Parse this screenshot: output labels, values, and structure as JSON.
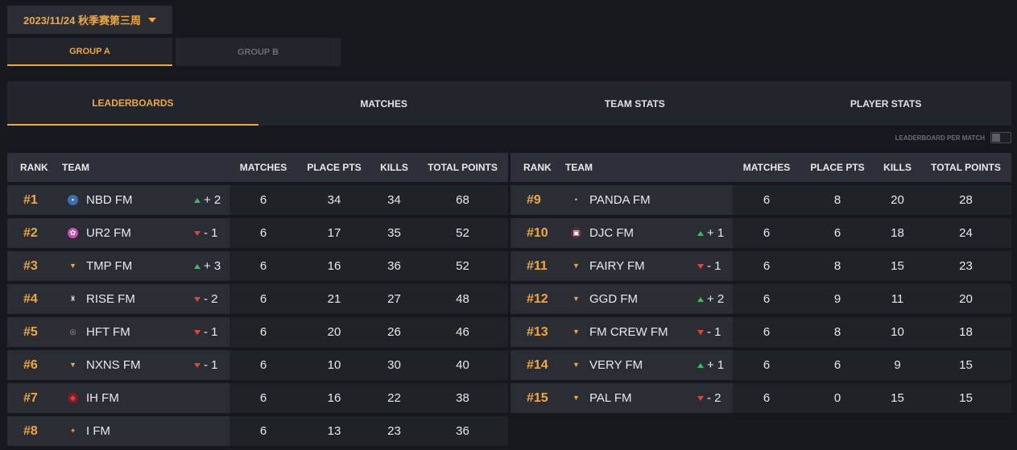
{
  "event_selector": {
    "label": "2023/11/24 秋季赛第三周",
    "icon": "chevron-down-icon"
  },
  "groups": [
    {
      "label": "GROUP A",
      "active": true
    },
    {
      "label": "GROUP B",
      "active": false
    }
  ],
  "tabs": [
    {
      "label": "LEADERBOARDS",
      "active": true
    },
    {
      "label": "MATCHES",
      "active": false
    },
    {
      "label": "TEAM STATS",
      "active": false
    },
    {
      "label": "PLAYER STATS",
      "active": false
    }
  ],
  "toggle": {
    "label": "LEADERBOARD PER MATCH",
    "on": false
  },
  "columns": {
    "rank": "RANK",
    "team": "TEAM",
    "matches": "MATCHES",
    "place_pts": "PLACE PTS",
    "kills": "KILLS",
    "total": "TOTAL POINTS"
  },
  "colors": {
    "accent": "#f0a83a",
    "up": "#3dbb5a",
    "down": "#e0453b"
  },
  "left_rows": [
    {
      "rank": "#1",
      "team": "NBD FM",
      "change": "+ 2",
      "dir": "up",
      "matches": "6",
      "place": "34",
      "kills": "34",
      "total": "68",
      "logo": "nbd-logo-icon"
    },
    {
      "rank": "#2",
      "team": "UR2 FM",
      "change": "- 1",
      "dir": "down",
      "matches": "6",
      "place": "17",
      "kills": "35",
      "total": "52",
      "logo": "ur2-logo-icon"
    },
    {
      "rank": "#3",
      "team": "TMP FM",
      "change": "+ 3",
      "dir": "up",
      "matches": "6",
      "place": "16",
      "kills": "36",
      "total": "52",
      "logo": "fm-chevron-logo-icon"
    },
    {
      "rank": "#4",
      "team": "RISE FM",
      "change": "- 2",
      "dir": "down",
      "matches": "6",
      "place": "21",
      "kills": "27",
      "total": "48",
      "logo": "rise-logo-icon"
    },
    {
      "rank": "#5",
      "team": "HFT FM",
      "change": "- 1",
      "dir": "down",
      "matches": "6",
      "place": "20",
      "kills": "26",
      "total": "46",
      "logo": "hft-logo-icon"
    },
    {
      "rank": "#6",
      "team": "NXNS FM",
      "change": "- 1",
      "dir": "down",
      "matches": "6",
      "place": "10",
      "kills": "30",
      "total": "40",
      "logo": "fm-chevron-logo-icon"
    },
    {
      "rank": "#7",
      "team": "IH FM",
      "change": "",
      "dir": "",
      "matches": "6",
      "place": "16",
      "kills": "22",
      "total": "38",
      "logo": "ih-logo-icon"
    },
    {
      "rank": "#8",
      "team": "I FM",
      "change": "",
      "dir": "",
      "matches": "6",
      "place": "13",
      "kills": "23",
      "total": "36",
      "logo": "i-logo-icon"
    }
  ],
  "right_rows": [
    {
      "rank": "#9",
      "team": "PANDA FM",
      "change": "",
      "dir": "",
      "matches": "6",
      "place": "8",
      "kills": "20",
      "total": "28",
      "logo": "panda-logo-icon"
    },
    {
      "rank": "#10",
      "team": "DJC FM",
      "change": "+ 1",
      "dir": "up",
      "matches": "6",
      "place": "6",
      "kills": "18",
      "total": "24",
      "logo": "djc-logo-icon"
    },
    {
      "rank": "#11",
      "team": "FAIRY FM",
      "change": "- 1",
      "dir": "down",
      "matches": "6",
      "place": "8",
      "kills": "15",
      "total": "23",
      "logo": "fm-chevron-logo-icon"
    },
    {
      "rank": "#12",
      "team": "GGD FM",
      "change": "+ 2",
      "dir": "up",
      "matches": "6",
      "place": "9",
      "kills": "11",
      "total": "20",
      "logo": "fm-chevron-logo-icon"
    },
    {
      "rank": "#13",
      "team": "FM CREW FM",
      "change": "- 1",
      "dir": "down",
      "matches": "6",
      "place": "8",
      "kills": "10",
      "total": "18",
      "logo": "fm-chevron-logo-icon"
    },
    {
      "rank": "#14",
      "team": "VERY FM",
      "change": "+ 1",
      "dir": "up",
      "matches": "6",
      "place": "6",
      "kills": "9",
      "total": "15",
      "logo": "fm-chevron-logo-icon"
    },
    {
      "rank": "#15",
      "team": "PAL FM",
      "change": "- 2",
      "dir": "down",
      "matches": "6",
      "place": "0",
      "kills": "15",
      "total": "15",
      "logo": "fm-chevron-logo-icon"
    }
  ]
}
